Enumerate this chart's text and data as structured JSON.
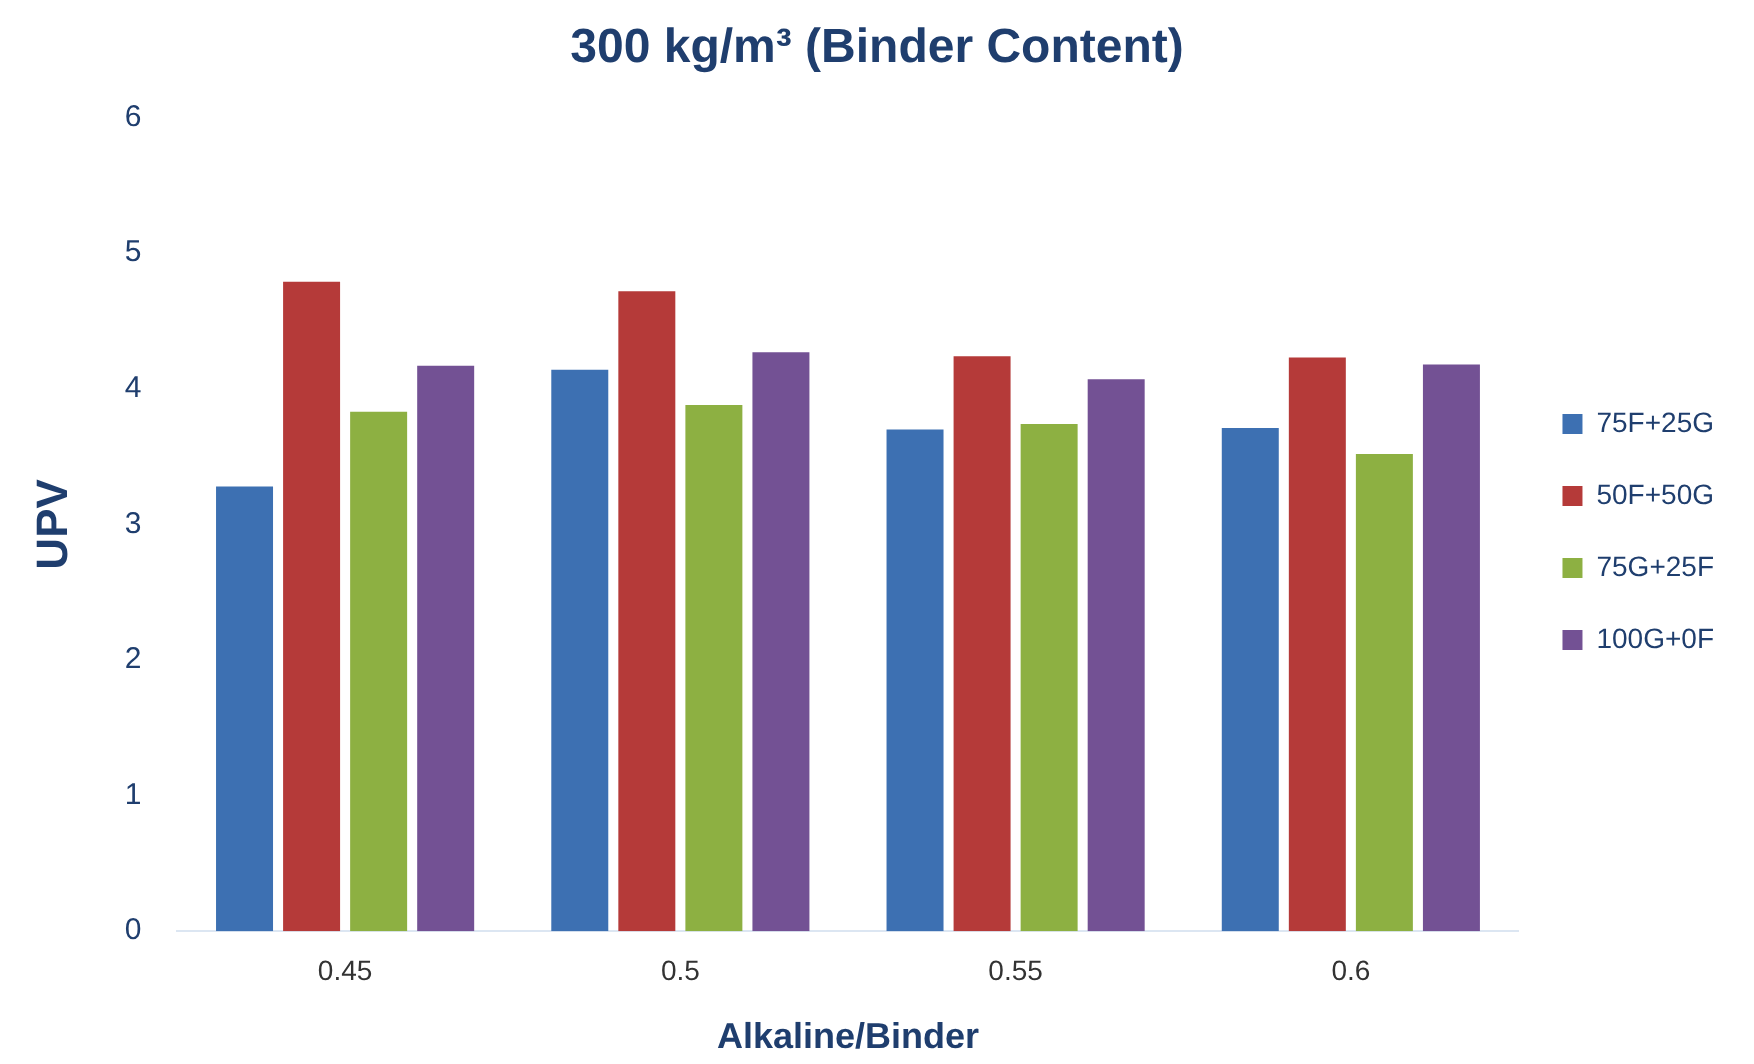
{
  "chart_data": {
    "type": "bar",
    "title": "300 kg/m³ (Binder Content)",
    "xlabel": "Alkaline/Binder",
    "ylabel": "UPV",
    "categories": [
      "0.45",
      "0.5",
      "0.55",
      "0.6"
    ],
    "series": [
      {
        "name": "75F+25G",
        "color": "#3d70b2",
        "values": [
          3.28,
          4.14,
          3.7,
          3.71
        ]
      },
      {
        "name": "50F+50G",
        "color": "#b53a39",
        "values": [
          4.79,
          4.72,
          4.24,
          4.23
        ]
      },
      {
        "name": "75G+25F",
        "color": "#8db042",
        "values": [
          3.83,
          3.88,
          3.74,
          3.52
        ]
      },
      {
        "name": "100G+0F",
        "color": "#735194",
        "values": [
          4.17,
          4.27,
          4.07,
          4.18
        ]
      }
    ],
    "ylim": [
      0,
      6
    ],
    "yticks": [
      0,
      1,
      2,
      3,
      4,
      5,
      6
    ],
    "grid": false,
    "legend": "right"
  }
}
